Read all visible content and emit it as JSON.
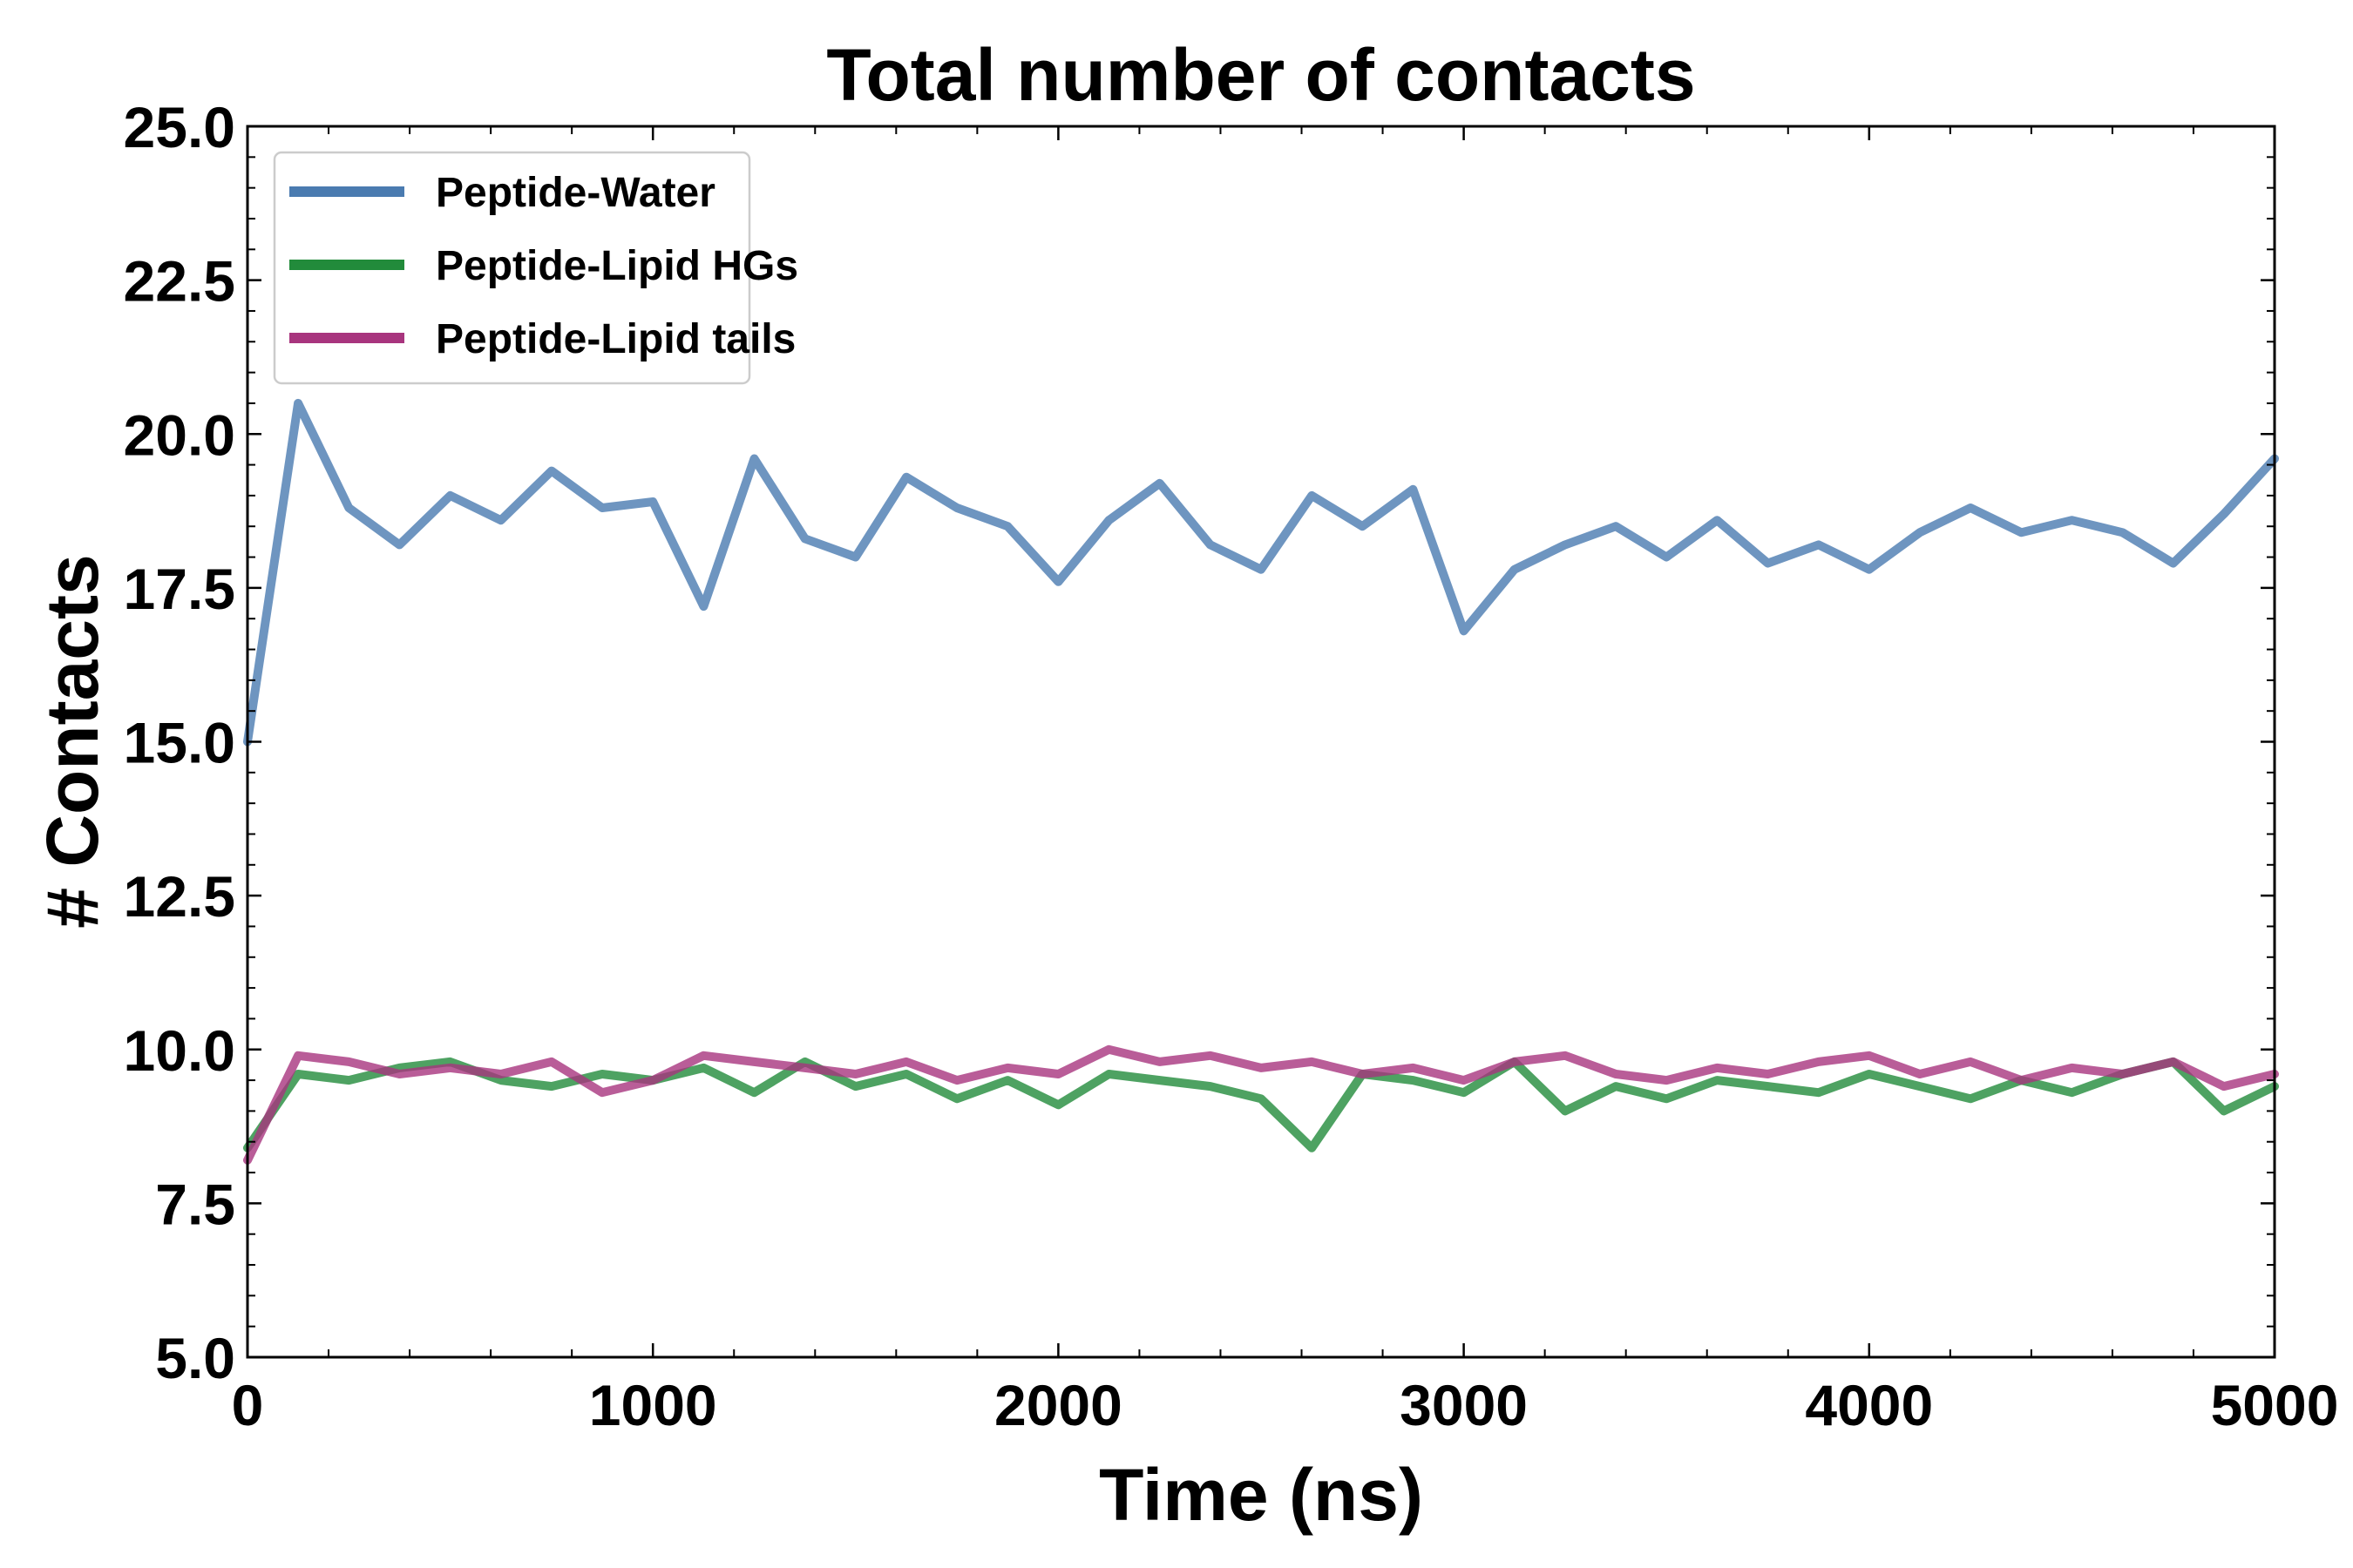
{
  "chart_data": {
    "type": "line",
    "title": "Total number of contacts",
    "xlabel": "Time (ns)",
    "ylabel": "# Contacts",
    "xlim": [
      0,
      5000
    ],
    "ylim": [
      5.0,
      25.0
    ],
    "xticks": [
      0,
      1000,
      2000,
      3000,
      4000,
      5000
    ],
    "xtick_labels": [
      "0",
      "1000",
      "2000",
      "3000",
      "4000",
      "5000"
    ],
    "yticks": [
      5.0,
      7.5,
      10.0,
      12.5,
      15.0,
      17.5,
      20.0,
      22.5,
      25.0
    ],
    "ytick_labels": [
      "5.0",
      "7.5",
      "10.0",
      "12.5",
      "15.0",
      "17.5",
      "20.0",
      "22.5",
      "25.0"
    ],
    "grid": false,
    "legend_position": "top-left",
    "x": [
      0,
      125,
      250,
      375,
      500,
      625,
      750,
      875,
      1000,
      1125,
      1250,
      1375,
      1500,
      1625,
      1750,
      1875,
      2000,
      2125,
      2250,
      2375,
      2500,
      2625,
      2750,
      2875,
      3000,
      3125,
      3250,
      3375,
      3500,
      3625,
      3750,
      3875,
      4000,
      4125,
      4250,
      4375,
      4500,
      4625,
      4750,
      4875,
      5000
    ],
    "series": [
      {
        "name": "Peptide-Water",
        "color": "#4a7bb0",
        "values": [
          15.0,
          20.5,
          18.8,
          18.2,
          19.0,
          18.6,
          19.4,
          18.8,
          18.9,
          17.2,
          19.6,
          18.3,
          18.0,
          19.3,
          18.8,
          18.5,
          17.6,
          18.6,
          19.2,
          18.2,
          17.8,
          19.0,
          18.5,
          19.1,
          16.8,
          17.8,
          18.2,
          18.5,
          18.0,
          18.6,
          17.9,
          18.2,
          17.8,
          18.4,
          18.8,
          18.4,
          18.6,
          18.4,
          17.9,
          18.7,
          19.6
        ]
      },
      {
        "name": "Peptide-Lipid HGs",
        "color": "#228b3b",
        "values": [
          8.4,
          9.6,
          9.5,
          9.7,
          9.8,
          9.5,
          9.4,
          9.6,
          9.5,
          9.7,
          9.3,
          9.8,
          9.4,
          9.6,
          9.2,
          9.5,
          9.1,
          9.6,
          9.5,
          9.4,
          9.2,
          8.4,
          9.6,
          9.5,
          9.3,
          9.8,
          9.0,
          9.4,
          9.2,
          9.5,
          9.4,
          9.3,
          9.6,
          9.4,
          9.2,
          9.5,
          9.3,
          9.6,
          9.8,
          9.0,
          9.4
        ]
      },
      {
        "name": "Peptide-Lipid tails",
        "color": "#a8357e",
        "values": [
          8.2,
          9.9,
          9.8,
          9.6,
          9.7,
          9.6,
          9.8,
          9.3,
          9.5,
          9.9,
          9.8,
          9.7,
          9.6,
          9.8,
          9.5,
          9.7,
          9.6,
          10.0,
          9.8,
          9.9,
          9.7,
          9.8,
          9.6,
          9.7,
          9.5,
          9.8,
          9.9,
          9.6,
          9.5,
          9.7,
          9.6,
          9.8,
          9.9,
          9.6,
          9.8,
          9.5,
          9.7,
          9.6,
          9.8,
          9.4,
          9.6
        ]
      }
    ]
  }
}
